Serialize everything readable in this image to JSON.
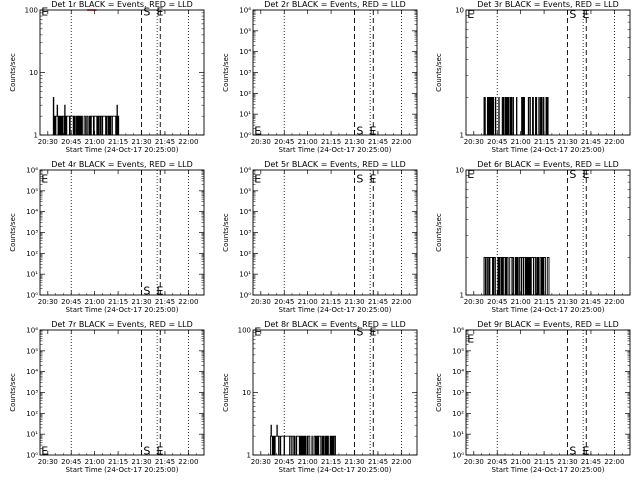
{
  "figure": {
    "x_tick_labels": [
      "20:30",
      "20:45",
      "21:00",
      "21:15",
      "21:30",
      "21:45",
      "22:00"
    ],
    "xlabel": "Start Time (24-Oct-17 20:25:00)",
    "ylabel": "Counts/sec",
    "markers": {
      "E": "E",
      "S": "S"
    }
  },
  "chart_data": [
    {
      "type": "line",
      "title": "Det 1r BLACK = Events, RED = LLD",
      "yscale": "log",
      "ylim": [
        1,
        100
      ],
      "y_tick_labels": [
        "1",
        "10",
        "100"
      ],
      "xlim": [
        20.4167,
        22.1667
      ],
      "dotted_lines_x": [
        20.75,
        21.6667,
        22.0
      ],
      "dashed_lines_x": [
        21.5,
        21.7
      ],
      "markers": [
        {
          "label": "E",
          "x": 20.43,
          "y": 95
        },
        {
          "label": "S",
          "x": 21.52,
          "y": 95
        },
        {
          "label": "E",
          "x": 21.66,
          "y": 95
        }
      ],
      "series": [
        {
          "color": "#000000",
          "pattern": "ones_twos",
          "x_range": [
            20.55,
            21.26
          ],
          "spikes": [
            [
              20.56,
              4
            ],
            [
              20.6,
              3
            ],
            [
              20.68,
              3
            ],
            [
              21.24,
              3
            ]
          ]
        },
        {
          "color": "#ff0000",
          "pattern": "flat",
          "x_range": [
            20.92,
            21.02
          ],
          "y_value": 100
        }
      ]
    },
    {
      "type": "line",
      "title": "Det 2r BLACK = Events, RED = LLD",
      "yscale": "log",
      "ylim": [
        1,
        1000000
      ],
      "y_tick_labels": [
        "10⁰",
        "10¹",
        "10²",
        "10³",
        "10⁴",
        "10⁵",
        "10⁶"
      ],
      "xlim": [
        20.4167,
        22.1667
      ],
      "dotted_lines_x": [
        20.75,
        21.6667,
        22.0
      ],
      "dashed_lines_x": [
        21.5,
        21.7
      ],
      "markers": [
        {
          "label": "E",
          "x": 20.43,
          "y": 1.6
        },
        {
          "label": "S",
          "x": 21.52,
          "y": 1.6
        },
        {
          "label": "E",
          "x": 21.66,
          "y": 1.6
        }
      ],
      "series": []
    },
    {
      "type": "line",
      "title": "Det 3r BLACK = Events, RED = LLD",
      "yscale": "log",
      "ylim": [
        1,
        10
      ],
      "y_tick_labels": [
        "1",
        "10"
      ],
      "xlim": [
        20.4167,
        22.1667
      ],
      "dotted_lines_x": [
        20.75,
        21.6667,
        22.0
      ],
      "dashed_lines_x": [
        21.5,
        21.7
      ],
      "markers": [
        {
          "label": "E",
          "x": 20.43,
          "y": 9.3
        },
        {
          "label": "S",
          "x": 21.52,
          "y": 9.3
        },
        {
          "label": "E",
          "x": 21.66,
          "y": 9.3
        }
      ],
      "series": [
        {
          "color": "#000000",
          "pattern": "sparse_twos",
          "x_range": [
            20.6,
            21.3
          ],
          "y_value": 2
        }
      ]
    },
    {
      "type": "line",
      "title": "Det 4r BLACK = Events, RED = LLD",
      "yscale": "log",
      "ylim": [
        1,
        1000000
      ],
      "y_tick_labels": [
        "10⁰",
        "10¹",
        "10²",
        "10³",
        "10⁴",
        "10⁵",
        "10⁶"
      ],
      "xlim": [
        20.4167,
        22.1667
      ],
      "dotted_lines_x": [
        20.75,
        21.6667,
        22.0
      ],
      "dashed_lines_x": [
        21.5,
        21.7
      ],
      "markers": [
        {
          "label": "E",
          "x": 20.43,
          "y": 400000
        },
        {
          "label": "S",
          "x": 21.52,
          "y": 1.6
        },
        {
          "label": "E",
          "x": 21.66,
          "y": 1.6
        }
      ],
      "series": []
    },
    {
      "type": "line",
      "title": "Det 5r BLACK = Events, RED = LLD",
      "yscale": "log",
      "ylim": [
        1,
        1000000
      ],
      "y_tick_labels": [
        "10⁰",
        "10¹",
        "10²",
        "10³",
        "10⁴",
        "10⁵",
        "10⁶"
      ],
      "xlim": [
        20.4167,
        22.1667
      ],
      "dotted_lines_x": [
        20.75,
        21.6667,
        22.0
      ],
      "dashed_lines_x": [
        21.5,
        21.7
      ],
      "markers": [
        {
          "label": "E",
          "x": 20.43,
          "y": 400000
        },
        {
          "label": "S",
          "x": 21.52,
          "y": 400000
        },
        {
          "label": "E",
          "x": 21.66,
          "y": 400000
        }
      ],
      "series": []
    },
    {
      "type": "line",
      "title": "Det 6r BLACK = Events, RED = LLD",
      "yscale": "log",
      "ylim": [
        1,
        10
      ],
      "y_tick_labels": [
        "1",
        "10"
      ],
      "xlim": [
        20.4167,
        22.1667
      ],
      "dotted_lines_x": [
        20.75,
        21.6667,
        22.0
      ],
      "dashed_lines_x": [
        21.5,
        21.7
      ],
      "markers": [
        {
          "label": "E",
          "x": 20.43,
          "y": 9.3
        },
        {
          "label": "S",
          "x": 21.52,
          "y": 9.3
        },
        {
          "label": "E",
          "x": 21.66,
          "y": 9.3
        }
      ],
      "series": [
        {
          "color": "#000000",
          "pattern": "dense_twos",
          "x_range": [
            20.6,
            21.3
          ],
          "y_value": 2
        }
      ]
    },
    {
      "type": "line",
      "title": "Det 7r BLACK = Events, RED = LLD",
      "yscale": "log",
      "ylim": [
        1,
        1000000
      ],
      "y_tick_labels": [
        "10⁰",
        "10¹",
        "10²",
        "10³",
        "10⁴",
        "10⁵",
        "10⁶"
      ],
      "xlim": [
        20.4167,
        22.1667
      ],
      "dotted_lines_x": [
        20.75,
        21.6667,
        22.0
      ],
      "dashed_lines_x": [
        21.5,
        21.7
      ],
      "markers": [
        {
          "label": "E",
          "x": 20.43,
          "y": 1.6
        },
        {
          "label": "S",
          "x": 21.52,
          "y": 1.6
        },
        {
          "label": "E",
          "x": 21.66,
          "y": 1.6
        }
      ],
      "series": []
    },
    {
      "type": "line",
      "title": "Det 8r BLACK = Events, RED = LLD",
      "yscale": "log",
      "ylim": [
        1,
        100
      ],
      "y_tick_labels": [
        "1",
        "10",
        "100"
      ],
      "xlim": [
        20.4167,
        22.1667
      ],
      "dotted_lines_x": [
        20.75,
        21.6667,
        22.0
      ],
      "dashed_lines_x": [
        21.5,
        21.7
      ],
      "markers": [
        {
          "label": "E",
          "x": 20.43,
          "y": 95
        },
        {
          "label": "S",
          "x": 21.52,
          "y": 95
        },
        {
          "label": "E",
          "x": 21.66,
          "y": 95
        }
      ],
      "series": [
        {
          "color": "#000000",
          "pattern": "ones_twos",
          "x_range": [
            20.6,
            21.3
          ],
          "spikes": [
            [
              20.61,
              3
            ],
            [
              20.67,
              3
            ]
          ]
        }
      ]
    },
    {
      "type": "line",
      "title": "Det 9r BLACK = Events, RED = LLD",
      "yscale": "log",
      "ylim": [
        1,
        1000000
      ],
      "y_tick_labels": [
        "10⁰",
        "10¹",
        "10²",
        "10³",
        "10⁴",
        "10⁵",
        "10⁶"
      ],
      "xlim": [
        20.4167,
        22.1667
      ],
      "dotted_lines_x": [
        20.75,
        21.6667,
        22.0
      ],
      "dashed_lines_x": [
        21.5,
        21.7
      ],
      "markers": [
        {
          "label": "E",
          "x": 20.43,
          "y": 400000
        },
        {
          "label": "S",
          "x": 21.52,
          "y": 1.6
        },
        {
          "label": "E",
          "x": 21.66,
          "y": 1.6
        }
      ],
      "series": []
    }
  ]
}
